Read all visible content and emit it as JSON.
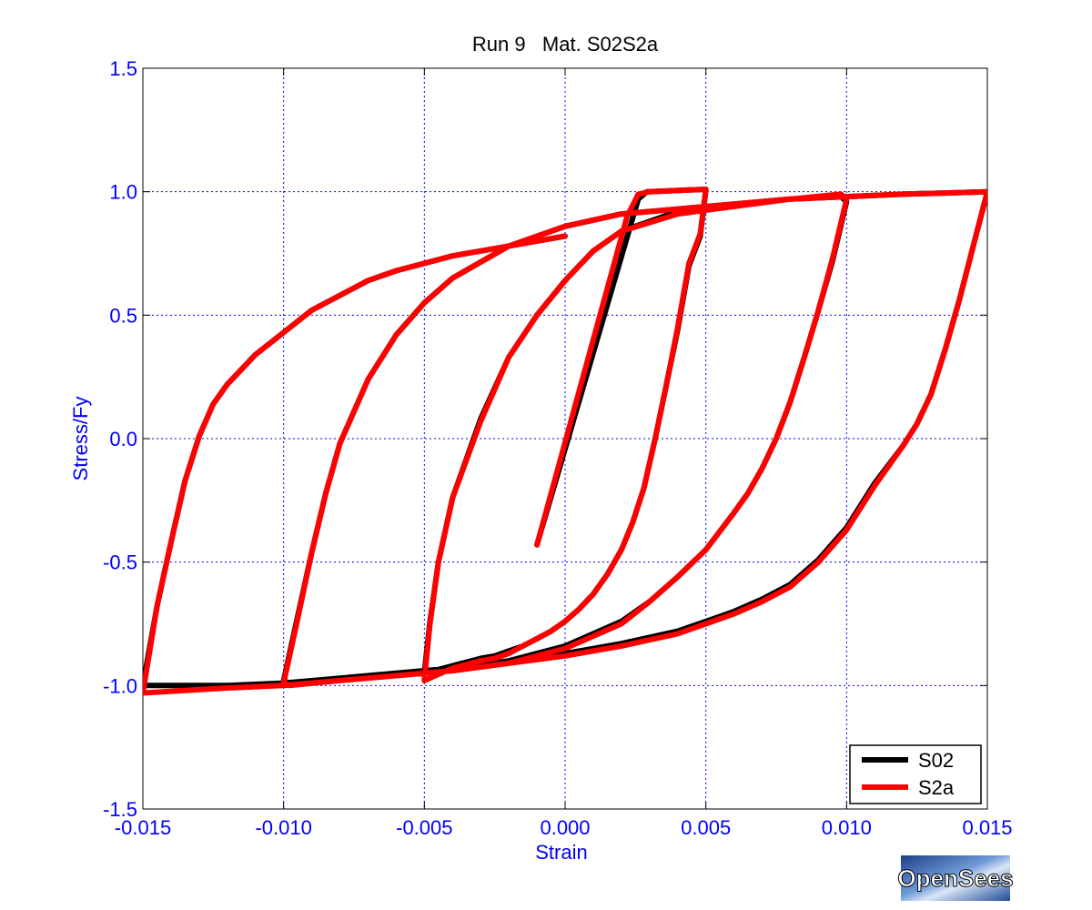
{
  "chart_data": {
    "type": "line",
    "title": "Run 9   Mat. S02S2a",
    "xlabel": "Strain",
    "ylabel": "Stress/Fy",
    "xlim": [
      -0.015,
      0.015
    ],
    "ylim": [
      -1.5,
      1.5
    ],
    "xticks": [
      -0.015,
      -0.01,
      -0.005,
      0.0,
      0.005,
      0.01,
      0.015
    ],
    "xtick_labels": [
      "-0.015",
      "-0.010",
      "-0.005",
      "0.000",
      "0.005",
      "0.010",
      "0.015"
    ],
    "yticks": [
      -1.5,
      -1.0,
      -0.5,
      0.0,
      0.5,
      1.0,
      1.5
    ],
    "ytick_labels": [
      "-1.5",
      "-1.0",
      "-0.5",
      "0.0",
      "0.5",
      "1.0",
      "1.5"
    ],
    "grid": true,
    "legend_position": "bottom-right",
    "series": [
      {
        "name": "S02",
        "color": "#000000",
        "x": [
          -0.001,
          0.0026,
          0.0029,
          0.005,
          0.0048,
          0.0044,
          0.004,
          0.0036,
          0.0032,
          0.0028,
          0.0024,
          0.002,
          0.0015,
          0.001,
          0.0005,
          0.0,
          -0.0005,
          -0.001,
          -0.0015,
          -0.002,
          -0.0025,
          -0.003,
          -0.004,
          -0.005,
          -0.0048,
          -0.0045,
          -0.004,
          -0.003,
          -0.002,
          -0.001,
          0.0,
          0.001,
          0.002,
          0.004,
          0.006,
          0.008,
          0.0098,
          0.01,
          0.0095,
          0.009,
          0.0085,
          0.008,
          0.0075,
          0.007,
          0.0065,
          0.006,
          0.005,
          0.004,
          0.003,
          0.002,
          0.0,
          -0.002,
          -0.004,
          -0.006,
          -0.008,
          -0.0098,
          -0.01,
          -0.0095,
          -0.009,
          -0.0085,
          -0.008,
          -0.007,
          -0.006,
          -0.005,
          -0.004,
          -0.002,
          0.0,
          0.002,
          0.004,
          0.006,
          0.008,
          0.01,
          0.012,
          0.015,
          0.0145,
          0.014,
          0.0135,
          0.013,
          0.0125,
          0.012,
          0.011,
          0.01,
          0.009,
          0.008,
          0.007,
          0.006,
          0.005,
          0.004,
          0.002,
          0.0,
          -0.002,
          -0.004,
          -0.006,
          -0.008,
          -0.01,
          -0.012,
          -0.015,
          -0.0145,
          -0.014,
          -0.0135,
          -0.013,
          -0.0125,
          -0.012,
          -0.011,
          -0.01,
          -0.009,
          -0.008,
          -0.007,
          -0.006,
          -0.005,
          -0.004,
          -0.003,
          -0.002,
          -0.001,
          0.0
        ],
        "y": [
          -0.43,
          0.97,
          1.0,
          1.01,
          0.82,
          0.7,
          0.44,
          0.22,
          0.0,
          -0.2,
          -0.34,
          -0.45,
          -0.55,
          -0.63,
          -0.69,
          -0.74,
          -0.78,
          -0.81,
          -0.84,
          -0.86,
          -0.88,
          -0.89,
          -0.92,
          -0.95,
          -0.74,
          -0.5,
          -0.24,
          0.08,
          0.33,
          0.5,
          0.64,
          0.76,
          0.84,
          0.92,
          0.95,
          0.97,
          0.98,
          0.96,
          0.72,
          0.52,
          0.33,
          0.15,
          0.0,
          -0.12,
          -0.22,
          -0.3,
          -0.45,
          -0.56,
          -0.66,
          -0.74,
          -0.84,
          -0.9,
          -0.93,
          -0.95,
          -0.97,
          -0.99,
          -0.98,
          -0.72,
          -0.46,
          -0.22,
          -0.02,
          0.24,
          0.42,
          0.55,
          0.65,
          0.78,
          0.86,
          0.91,
          0.93,
          0.95,
          0.97,
          0.98,
          0.99,
          1.0,
          0.78,
          0.56,
          0.36,
          0.18,
          0.06,
          -0.03,
          -0.18,
          -0.36,
          -0.49,
          -0.59,
          -0.65,
          -0.7,
          -0.74,
          -0.78,
          -0.83,
          -0.87,
          -0.9,
          -0.93,
          -0.95,
          -0.97,
          -0.99,
          -1.0,
          -1.0,
          -0.68,
          -0.42,
          -0.17,
          0.01,
          0.14,
          0.22,
          0.34,
          0.43,
          0.52,
          0.58,
          0.64,
          0.68,
          0.71,
          0.74,
          0.76,
          0.78,
          0.8,
          0.82
        ]
      },
      {
        "name": "S2a",
        "color": "#ff0000",
        "x": [
          -0.001,
          0.0022,
          0.0026,
          0.003,
          0.005,
          0.0048,
          0.0044,
          0.004,
          0.0036,
          0.0032,
          0.0028,
          0.0024,
          0.002,
          0.0015,
          0.001,
          0.0005,
          0.0,
          -0.0005,
          -0.001,
          -0.0015,
          -0.002,
          -0.0025,
          -0.003,
          -0.004,
          -0.005,
          -0.0048,
          -0.0045,
          -0.004,
          -0.003,
          -0.002,
          -0.001,
          0.0,
          0.001,
          0.002,
          0.004,
          0.006,
          0.008,
          0.0098,
          0.01,
          0.0095,
          0.009,
          0.0085,
          0.008,
          0.0075,
          0.007,
          0.0065,
          0.006,
          0.005,
          0.004,
          0.003,
          0.002,
          0.0,
          -0.002,
          -0.004,
          -0.006,
          -0.008,
          -0.0098,
          -0.01,
          -0.0095,
          -0.009,
          -0.0085,
          -0.008,
          -0.007,
          -0.006,
          -0.005,
          -0.004,
          -0.002,
          0.0,
          0.002,
          0.004,
          0.006,
          0.008,
          0.01,
          0.012,
          0.015,
          0.0145,
          0.014,
          0.0135,
          0.013,
          0.0125,
          0.012,
          0.011,
          0.01,
          0.009,
          0.008,
          0.007,
          0.006,
          0.005,
          0.004,
          0.002,
          0.0,
          -0.002,
          -0.004,
          -0.006,
          -0.008,
          -0.01,
          -0.012,
          -0.015,
          -0.0145,
          -0.014,
          -0.0135,
          -0.013,
          -0.0125,
          -0.012,
          -0.011,
          -0.01,
          -0.009,
          -0.008,
          -0.007,
          -0.006,
          -0.005,
          -0.004,
          -0.003,
          -0.002,
          -0.001,
          0.0
        ],
        "y": [
          -0.43,
          0.9,
          0.99,
          1.0,
          1.01,
          0.83,
          0.71,
          0.45,
          0.22,
          0.0,
          -0.2,
          -0.34,
          -0.45,
          -0.55,
          -0.63,
          -0.69,
          -0.74,
          -0.78,
          -0.81,
          -0.84,
          -0.87,
          -0.89,
          -0.9,
          -0.93,
          -0.98,
          -0.75,
          -0.5,
          -0.24,
          0.07,
          0.33,
          0.5,
          0.64,
          0.76,
          0.84,
          0.91,
          0.94,
          0.97,
          0.99,
          0.97,
          0.73,
          0.52,
          0.33,
          0.15,
          0.0,
          -0.12,
          -0.22,
          -0.3,
          -0.45,
          -0.56,
          -0.66,
          -0.75,
          -0.85,
          -0.91,
          -0.94,
          -0.96,
          -0.98,
          -1.0,
          -0.99,
          -0.73,
          -0.46,
          -0.22,
          -0.02,
          0.24,
          0.42,
          0.55,
          0.65,
          0.78,
          0.86,
          0.91,
          0.93,
          0.95,
          0.97,
          0.98,
          0.99,
          1.0,
          0.78,
          0.56,
          0.36,
          0.18,
          0.06,
          -0.03,
          -0.19,
          -0.37,
          -0.5,
          -0.6,
          -0.66,
          -0.71,
          -0.75,
          -0.79,
          -0.84,
          -0.88,
          -0.91,
          -0.94,
          -0.96,
          -0.98,
          -1.0,
          -1.01,
          -1.03,
          -0.68,
          -0.42,
          -0.17,
          0.01,
          0.14,
          0.22,
          0.34,
          0.43,
          0.52,
          0.58,
          0.64,
          0.68,
          0.71,
          0.74,
          0.76,
          0.78,
          0.8,
          0.82
        ]
      }
    ]
  },
  "logo": {
    "text": "OpenSees"
  }
}
